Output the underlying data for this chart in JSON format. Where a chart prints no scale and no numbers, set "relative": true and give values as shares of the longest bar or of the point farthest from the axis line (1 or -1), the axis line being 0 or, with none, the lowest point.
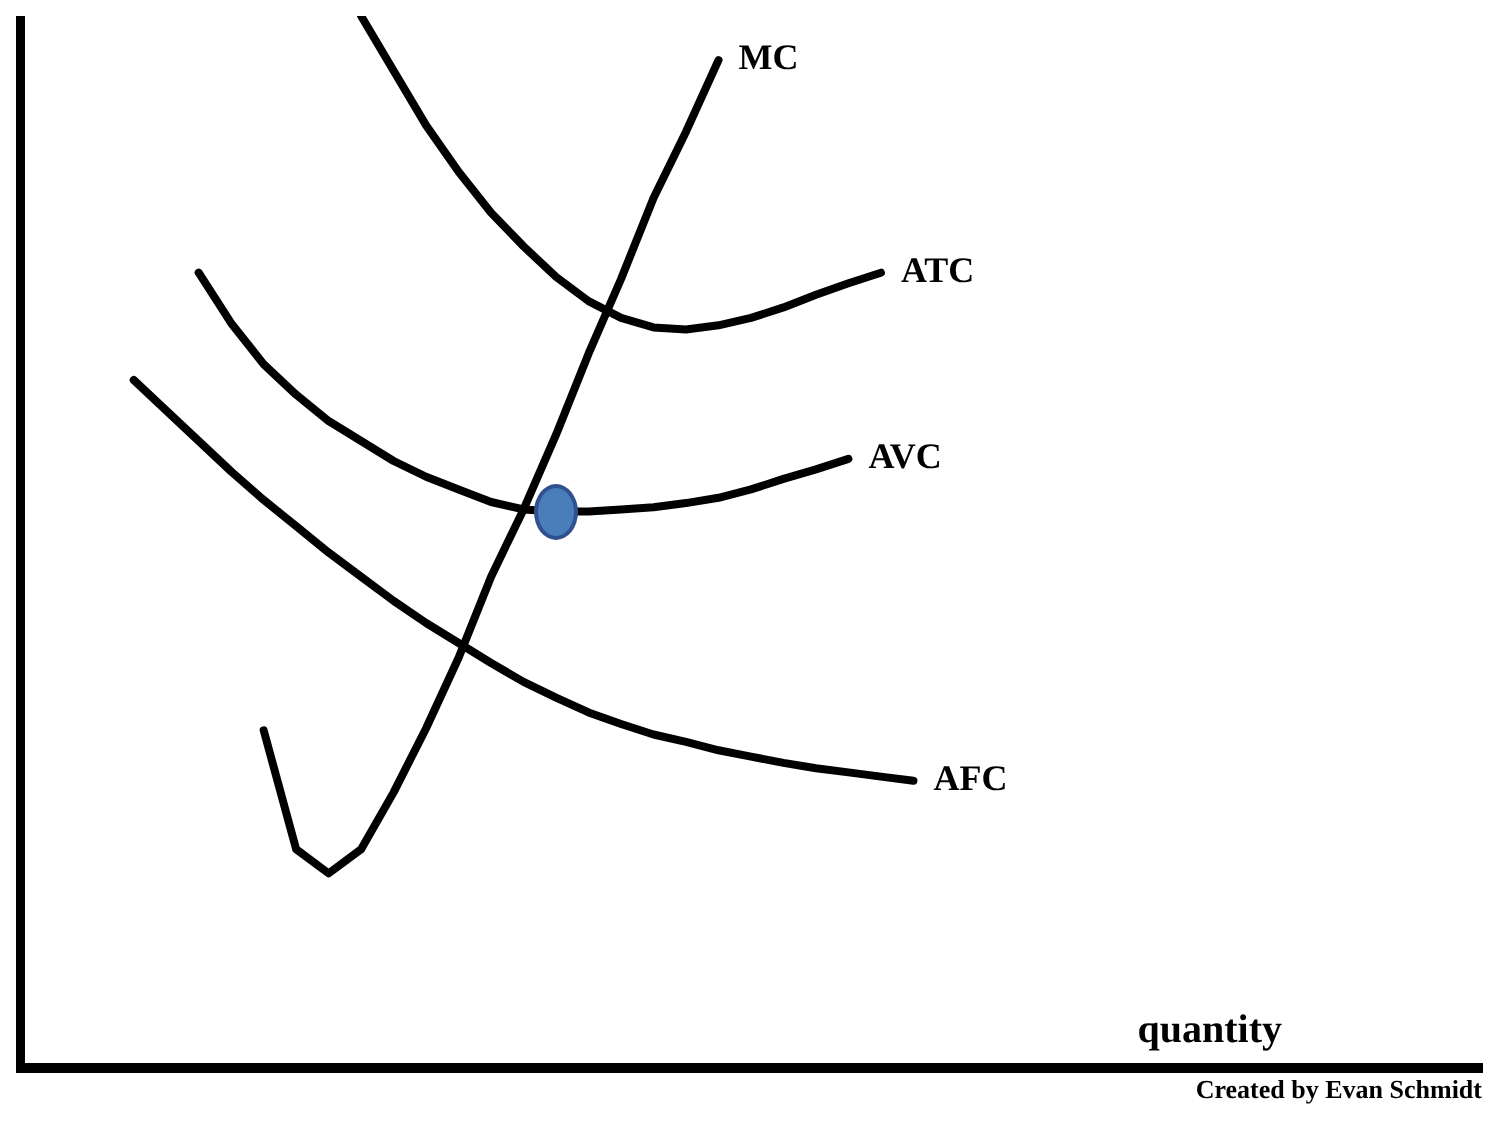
{
  "chart_data": {
    "type": "line",
    "relative": true,
    "xlabel": "quantity",
    "annotations": [
      "Created by Evan Schmidt"
    ],
    "legend": false,
    "grid": false,
    "marker": "none",
    "line_style": "solid",
    "categories": [
      null,
      null,
      null,
      null,
      null,
      null,
      null,
      null,
      null,
      null,
      null,
      null,
      null,
      null,
      null,
      null,
      null,
      null,
      null,
      null,
      null,
      null,
      null,
      null,
      null,
      null,
      null,
      null,
      null,
      null,
      null,
      null,
      null,
      null,
      null,
      null,
      null,
      null,
      null,
      null,
      null,
      null,
      null,
      null,
      null
    ],
    "series": [
      {
        "name": "ATC",
        "color": "#000000",
        "values": [
          null,
          null,
          null,
          null,
          null,
          null,
          null,
          null,
          null,
          null,
          1,
          0.948,
          0.896,
          0.852,
          0.813,
          0.781,
          0.752,
          0.729,
          0.713,
          0.704,
          0.702,
          0.706,
          0.713,
          0.723,
          0.735,
          0.746,
          0.756,
          null,
          null,
          null,
          null,
          null,
          null,
          null,
          null,
          null,
          null,
          null,
          null,
          null,
          null,
          null,
          null,
          null,
          null
        ]
      },
      {
        "name": "MC",
        "color": "#000000",
        "values": [
          null,
          null,
          null,
          null,
          null,
          null,
          null,
          0.321,
          0.208,
          0.185,
          0.208,
          0.262,
          0.323,
          0.39,
          0.467,
          0.531,
          0.602,
          0.679,
          0.75,
          0.827,
          0.89,
          0.958,
          null,
          null,
          null,
          null,
          null,
          null,
          null,
          null,
          null,
          null,
          null,
          null,
          null,
          null,
          null,
          null,
          null,
          null,
          null,
          null,
          null,
          null,
          null
        ]
      },
      {
        "name": "AVC",
        "color": "#000000",
        "values": [
          null,
          null,
          null,
          null,
          null,
          0.756,
          0.708,
          0.669,
          0.64,
          0.615,
          0.596,
          0.577,
          0.562,
          0.55,
          0.538,
          0.531,
          0.529,
          0.529,
          0.531,
          0.533,
          0.537,
          0.542,
          0.55,
          0.56,
          0.569,
          0.579,
          null,
          null,
          null,
          null,
          null,
          null,
          null,
          null,
          null,
          null,
          null,
          null,
          null,
          null,
          null,
          null,
          null,
          null,
          null
        ]
      },
      {
        "name": "AFC",
        "color": "#000000",
        "values": [
          null,
          null,
          null,
          0.654,
          0.625,
          0.596,
          0.567,
          0.54,
          0.515,
          0.49,
          0.467,
          0.444,
          0.423,
          0.404,
          0.385,
          0.367,
          0.352,
          0.338,
          0.327,
          0.317,
          0.31,
          0.302,
          0.296,
          0.29,
          0.285,
          0.281,
          0.277,
          0.273,
          null,
          null,
          null,
          null,
          null,
          null,
          null,
          null,
          null,
          null,
          null,
          null,
          null,
          null,
          null,
          null,
          null
        ]
      }
    ]
  }
}
